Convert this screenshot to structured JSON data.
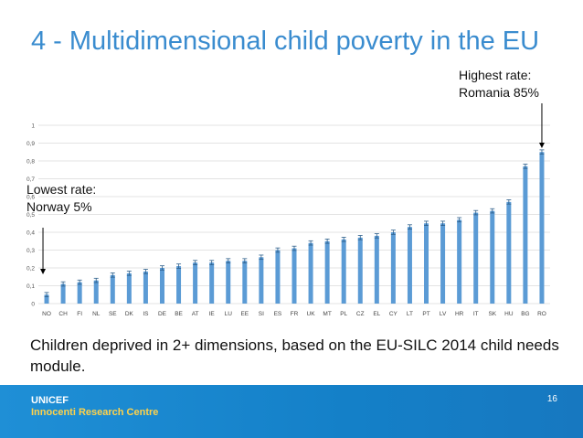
{
  "slide": {
    "title": "4 - Multidimensional child poverty in the EU",
    "caption": "Children deprived in 2+ dimensions, based on the EU-SILC 2014 child needs module.",
    "page_number": "16"
  },
  "annotations": {
    "highest": {
      "line1": "Highest rate:",
      "line2": "Romania 85%"
    },
    "lowest": {
      "line1": "Lowest rate:",
      "line2": "Norway 5%"
    }
  },
  "footer": {
    "org_name": "UNICEF",
    "org_unit": "Innocenti Research Centre"
  },
  "colors": {
    "title": "#3a8ccf",
    "bar": "#5b9bd5",
    "footer": "#1480c8",
    "footer_sub": "#ffd24a"
  },
  "chart_data": {
    "type": "bar",
    "title": "",
    "xlabel": "",
    "ylabel": "",
    "ylim": [
      0,
      1
    ],
    "yticks": [
      "0",
      "0,1",
      "0,2",
      "0,3",
      "0,4",
      "0,5",
      "0,6",
      "0,7",
      "0,8",
      "0,9",
      "1"
    ],
    "grid": true,
    "error_bars": true,
    "categories": [
      "NO",
      "CH",
      "FI",
      "NL",
      "SE",
      "DK",
      "IS",
      "DE",
      "BE",
      "AT",
      "IE",
      "LU",
      "EE",
      "SI",
      "ES",
      "FR",
      "UK",
      "MT",
      "PL",
      "CZ",
      "EL",
      "CY",
      "LT",
      "PT",
      "LV",
      "HR",
      "IT",
      "SK",
      "HU",
      "BG",
      "RO"
    ],
    "values": [
      0.05,
      0.11,
      0.12,
      0.13,
      0.16,
      0.17,
      0.18,
      0.2,
      0.21,
      0.23,
      0.23,
      0.24,
      0.24,
      0.26,
      0.3,
      0.31,
      0.34,
      0.35,
      0.36,
      0.37,
      0.38,
      0.4,
      0.43,
      0.45,
      0.45,
      0.47,
      0.51,
      0.52,
      0.57,
      0.77,
      0.85
    ]
  }
}
